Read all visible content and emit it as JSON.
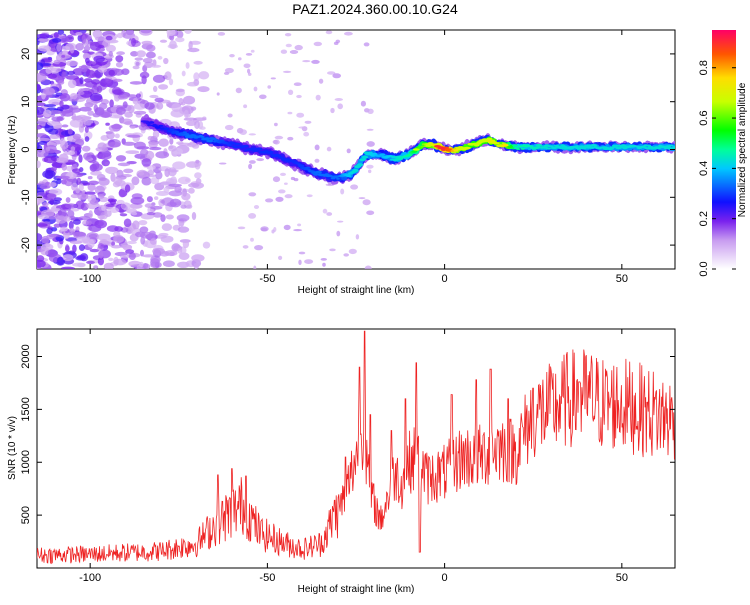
{
  "title": "PAZ1.2024.360.00.10.G24",
  "chart_data": [
    {
      "type": "heatmap",
      "xlabel": "Height of straight line (km)",
      "ylabel": "Frequency (Hz)",
      "xlim": [
        -115,
        65
      ],
      "ylim": [
        -25,
        25
      ],
      "x_ticks": [
        -100,
        -50,
        0,
        50
      ],
      "y_ticks": [
        -20,
        -10,
        0,
        10,
        20
      ],
      "colorbar": {
        "label": "Normalized spectral amplitude",
        "range": [
          0,
          0.95
        ],
        "ticks": [
          0.0,
          0.2,
          0.4,
          0.6,
          0.8
        ],
        "tick_labels": [
          "0.0",
          "0.2",
          "0.4",
          "0.6",
          "0.8"
        ]
      },
      "ridge": {
        "x": [
          -85,
          -78,
          -72,
          -66,
          -60,
          -54,
          -48,
          -42,
          -36,
          -30,
          -26,
          -22,
          -18,
          -14,
          -10,
          -6,
          -3,
          0,
          4,
          8,
          12,
          16,
          20,
          30,
          40,
          50,
          65
        ],
        "y": [
          6,
          4,
          3,
          2,
          1,
          0,
          -1,
          -3,
          -5,
          -6,
          -5,
          -1,
          -1,
          -2,
          -1,
          1,
          1,
          0,
          0,
          1,
          2,
          1,
          0.5,
          0.5,
          0.5,
          0.5,
          0.5
        ],
        "amplitude": [
          0.25,
          0.3,
          0.35,
          0.35,
          0.3,
          0.3,
          0.3,
          0.3,
          0.35,
          0.35,
          0.45,
          0.45,
          0.4,
          0.45,
          0.5,
          0.65,
          0.75,
          0.95,
          0.75,
          0.7,
          0.7,
          0.75,
          0.5,
          0.45,
          0.45,
          0.45,
          0.45
        ]
      }
    },
    {
      "type": "line",
      "xlabel": "Height of straight line (km)",
      "ylabel": "SNR (10 * v/v)",
      "xlim": [
        -115,
        65
      ],
      "ylim": [
        0,
        2260
      ],
      "x_ticks": [
        -100,
        -50,
        0,
        50
      ],
      "y_ticks": [
        500,
        1000,
        1500,
        2000
      ],
      "color": "#ee2222",
      "profile": {
        "x": [
          -115,
          -100,
          -80,
          -70,
          -65,
          -60,
          -57,
          -52,
          -45,
          -40,
          -35,
          -30,
          -28,
          -25,
          -23,
          -21,
          -18,
          -14,
          -12,
          -10,
          -8,
          -5,
          0,
          5,
          10,
          15,
          20,
          25,
          30,
          35,
          40,
          45,
          50,
          55,
          60,
          65
        ],
        "y": [
          120,
          130,
          160,
          230,
          400,
          530,
          600,
          330,
          230,
          180,
          230,
          550,
          700,
          1050,
          1350,
          700,
          450,
          900,
          800,
          1000,
          1050,
          850,
          900,
          1050,
          1050,
          1150,
          1100,
          1450,
          1500,
          1600,
          1620,
          1550,
          1550,
          1500,
          1450,
          1400
        ]
      },
      "spikes": [
        {
          "x": -64,
          "y": 880
        },
        {
          "x": -60,
          "y": 940
        },
        {
          "x": -56,
          "y": 870
        },
        {
          "x": -31,
          "y": 640
        },
        {
          "x": -28,
          "y": 1050
        },
        {
          "x": -24,
          "y": 1900
        },
        {
          "x": -22.5,
          "y": 2240
        },
        {
          "x": -21,
          "y": 1450
        },
        {
          "x": -15,
          "y": 1300
        },
        {
          "x": -11,
          "y": 1600
        },
        {
          "x": -8,
          "y": 1940
        },
        {
          "x": -7,
          "y": 150
        },
        {
          "x": 2,
          "y": 1640
        },
        {
          "x": 9,
          "y": 1780
        },
        {
          "x": 13,
          "y": 1880
        },
        {
          "x": 18,
          "y": 1600
        },
        {
          "x": 25,
          "y": 1700
        },
        {
          "x": 38,
          "y": 1760
        }
      ]
    }
  ]
}
